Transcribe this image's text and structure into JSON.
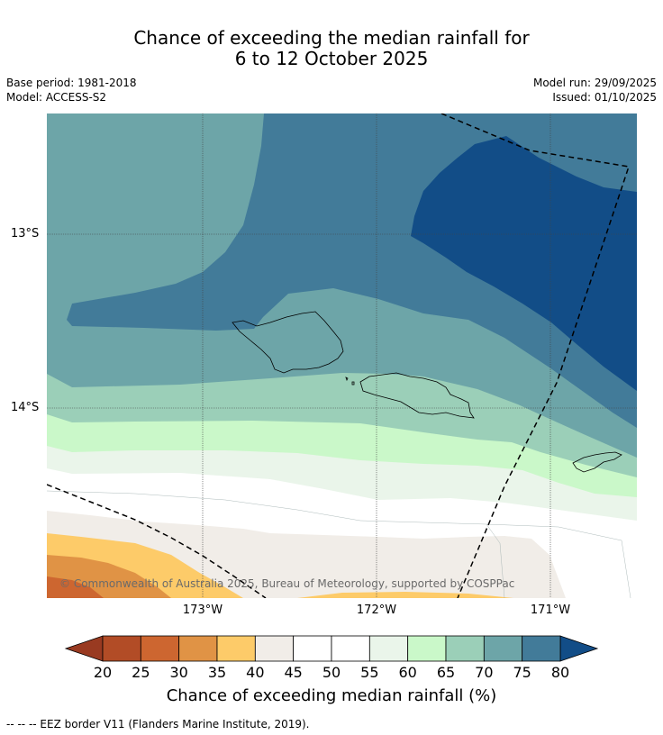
{
  "title_line1": "Chance of exceeding the median rainfall for",
  "title_line2": "6 to 12 October 2025",
  "base_period": "Base period: 1981-2018",
  "model": "Model: ACCESS-S2",
  "model_run": "Model run: 29/09/2025",
  "issued": "Issued: 01/10/2025",
  "lat_labels": [
    "13°S",
    "14°S"
  ],
  "lon_labels": [
    "173°W",
    "172°W",
    "171°W"
  ],
  "copyright": "© Commonwealth of Australia 2025, Bureau of Meteorology, supported by COSPPac",
  "colorbar": {
    "ticks": [
      "20",
      "25",
      "30",
      "35",
      "40",
      "45",
      "50",
      "55",
      "60",
      "65",
      "70",
      "75",
      "80"
    ],
    "colors": [
      "#b24c26",
      "#cd6630",
      "#e09345",
      "#fdcb69",
      "#f1ede8",
      "#ffffff",
      "#ffffff",
      "#eaf5ea",
      "#caf8c9",
      "#9bcfb8",
      "#6da5a8",
      "#427b99"
    ],
    "under_color": "#993a21",
    "over_color": "#124d87",
    "label": "Chance of exceeding median rainfall (%)"
  },
  "footnote": "--  --  -- EEZ border V11 (Flanders Marine Institute, 2019)."
}
